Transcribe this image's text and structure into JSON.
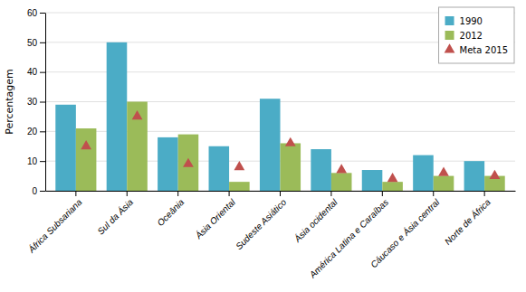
{
  "chart_data": {
    "type": "bar",
    "categories": [
      "África Subsariana",
      "Sul da Ásia",
      "Oceânia",
      "Ásia Oriental",
      "Sudeste Asiático",
      "Ásia ocidental",
      "América Latina e Caraíbas",
      "Cáucaso e Ásia central",
      "Norte de África"
    ],
    "series": [
      {
        "name": "1990",
        "color": "#4bacc6",
        "values": [
          29,
          50,
          18,
          15,
          31,
          14,
          7,
          12,
          10
        ]
      },
      {
        "name": "2012",
        "color": "#9bbb59",
        "values": [
          21,
          30,
          19,
          3,
          16,
          6,
          3,
          5,
          5
        ]
      },
      {
        "name": "Meta 2015",
        "color": "#c0504d",
        "type": "scatter",
        "marker": "triangle",
        "values": [
          15,
          25,
          9,
          8,
          16,
          7,
          4,
          6,
          5
        ]
      }
    ],
    "y_label": "Percentagem",
    "ylim": [
      0,
      60
    ],
    "yticks": [
      0,
      10,
      20,
      30,
      40,
      50,
      60
    ],
    "grid": true,
    "legend": "upper right"
  }
}
